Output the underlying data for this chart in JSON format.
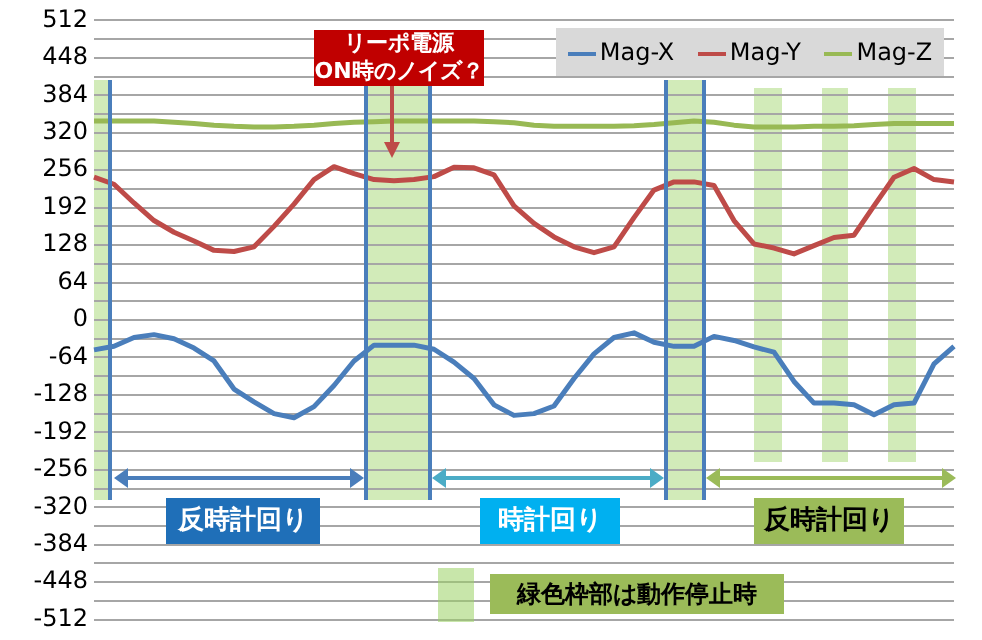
{
  "chart_data": {
    "type": "line",
    "categories": [
      null,
      null,
      null,
      null,
      null,
      null,
      null,
      null,
      null,
      null,
      null,
      null,
      null,
      null,
      null,
      null,
      null,
      null,
      null,
      null,
      null,
      null,
      null,
      null,
      null,
      null,
      null,
      null,
      null,
      null,
      null,
      null,
      null,
      null,
      null,
      null,
      null,
      null,
      null,
      null,
      null,
      null,
      null,
      null
    ],
    "series": [
      {
        "name": "Mag-X",
        "color": "#4a7ebb",
        "values": [
          -51,
          -45,
          -30,
          -25,
          -32,
          -48,
          -70,
          -118,
          -140,
          -160,
          -167,
          -148,
          -112,
          -70,
          -43,
          -43,
          -43,
          -50,
          -72,
          -100,
          -145,
          -163,
          -160,
          -147,
          -100,
          -58,
          -30,
          -22,
          -38,
          -45,
          -45,
          -28,
          -35,
          -46,
          -55,
          -105,
          -142,
          -142,
          -145,
          -162,
          -145,
          -142,
          -75,
          -45
        ]
      },
      {
        "name": "Mag-Y",
        "color": "#be4b48",
        "values": [
          244,
          232,
          200,
          170,
          150,
          135,
          119,
          117,
          125,
          160,
          198,
          240,
          262,
          250,
          240,
          238,
          240,
          245,
          261,
          260,
          248,
          195,
          165,
          142,
          125,
          115,
          125,
          175,
          222,
          236,
          236,
          230,
          170,
          130,
          123,
          113,
          127,
          141,
          145,
          195,
          244,
          259,
          240,
          236
        ]
      },
      {
        "name": "Mag-Z",
        "color": "#98b954",
        "values": [
          340,
          340,
          340,
          340,
          338,
          336,
          333,
          331,
          330,
          330,
          331,
          333,
          336,
          338,
          339,
          340,
          340,
          340,
          340,
          340,
          339,
          337,
          333,
          331,
          331,
          331,
          331,
          332,
          334,
          337,
          340,
          338,
          333,
          330,
          330,
          330,
          331,
          331,
          332,
          334,
          336,
          336,
          336,
          336
        ]
      }
    ],
    "ylim": [
      -512,
      512
    ],
    "yticks": [
      -512,
      {
        "value": -480,
        "label": null
      },
      -448,
      {
        "value": -416,
        "label": null
      },
      -384,
      {
        "value": -352,
        "label": null
      },
      -320,
      {
        "value": -288,
        "label": null
      },
      -256,
      {
        "value": -224,
        "label": null
      },
      -192,
      {
        "value": -160,
        "label": null
      },
      -128,
      {
        "value": -96,
        "label": null
      },
      -64,
      {
        "value": -32,
        "label": null
      },
      0,
      {
        "value": 32,
        "label": null
      },
      64,
      {
        "value": 96,
        "label": null
      },
      128,
      {
        "value": 160,
        "label": null
      },
      192,
      {
        "value": 224,
        "label": null
      },
      256,
      {
        "value": 288,
        "label": null
      },
      320,
      {
        "value": 352,
        "label": null
      },
      384,
      {
        "value": 416,
        "label": null
      },
      448,
      {
        "value": 480,
        "label": null
      },
      512
    ],
    "grid": "y",
    "legend": "top right",
    "marker": "none",
    "line_style": "solid",
    "tick_labels": "y",
    "annotations": [
      "リーポ電源\nON時のノイズ？",
      "反時計回り",
      "時計回り",
      "反時計回り",
      "緑色枠部は動作停止時"
    ]
  }
}
